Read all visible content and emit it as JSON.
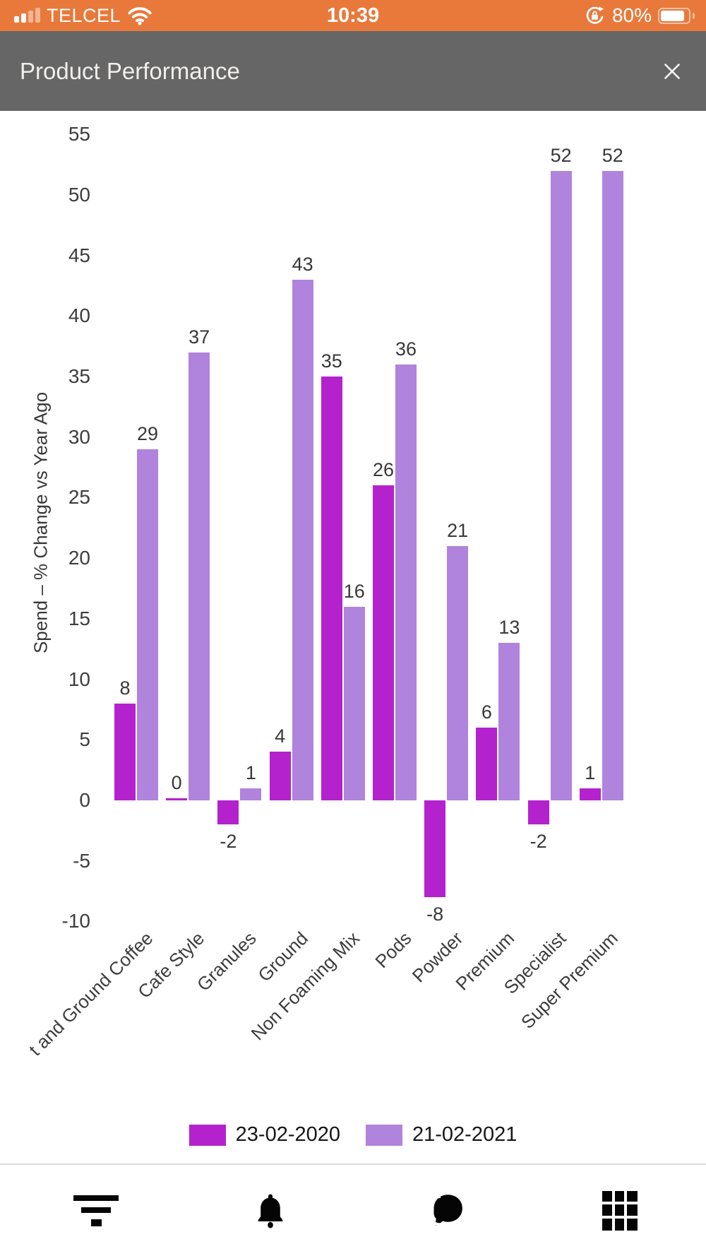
{
  "status_bar": {
    "carrier": "TELCEL",
    "time": "10:39",
    "battery_percent": "80%",
    "icons": [
      "cell-signal-icon",
      "wifi-icon",
      "orientation-lock-icon",
      "battery-icon"
    ],
    "background_color": "#E8793B"
  },
  "header": {
    "title": "Product Performance",
    "background_color": "#666666",
    "icons": [
      "close-icon"
    ]
  },
  "chart_data": {
    "type": "bar",
    "title": "",
    "xlabel": "",
    "ylabel": "Spend – % Change vs Year Ago",
    "ylim": [
      -10,
      55
    ],
    "ytick_step": 5,
    "grid": false,
    "legend_position": "bottom",
    "categories": [
      "t and Ground Coffee",
      "Cafe Style",
      "Granules",
      "Ground",
      "Non Foaming Mix",
      "Pods",
      "Powder",
      "Premium",
      "Specialist",
      "Super Premium"
    ],
    "series": [
      {
        "name": "23-02-2020",
        "color": "#B422CD",
        "values": [
          8,
          0,
          -2,
          4,
          35,
          26,
          -8,
          6,
          -2,
          1
        ]
      },
      {
        "name": "21-02-2021",
        "color": "#B083DC",
        "values": [
          29,
          37,
          1,
          43,
          16,
          36,
          21,
          13,
          52,
          52
        ]
      }
    ]
  },
  "legend": {
    "items": [
      {
        "label": "23-02-2020",
        "color": "#B422CD"
      },
      {
        "label": "21-02-2021",
        "color": "#B083DC"
      }
    ]
  },
  "navbar": {
    "icons": [
      "filter-icon",
      "notifications-bell-icon",
      "chat-icon",
      "grid-icon"
    ]
  }
}
